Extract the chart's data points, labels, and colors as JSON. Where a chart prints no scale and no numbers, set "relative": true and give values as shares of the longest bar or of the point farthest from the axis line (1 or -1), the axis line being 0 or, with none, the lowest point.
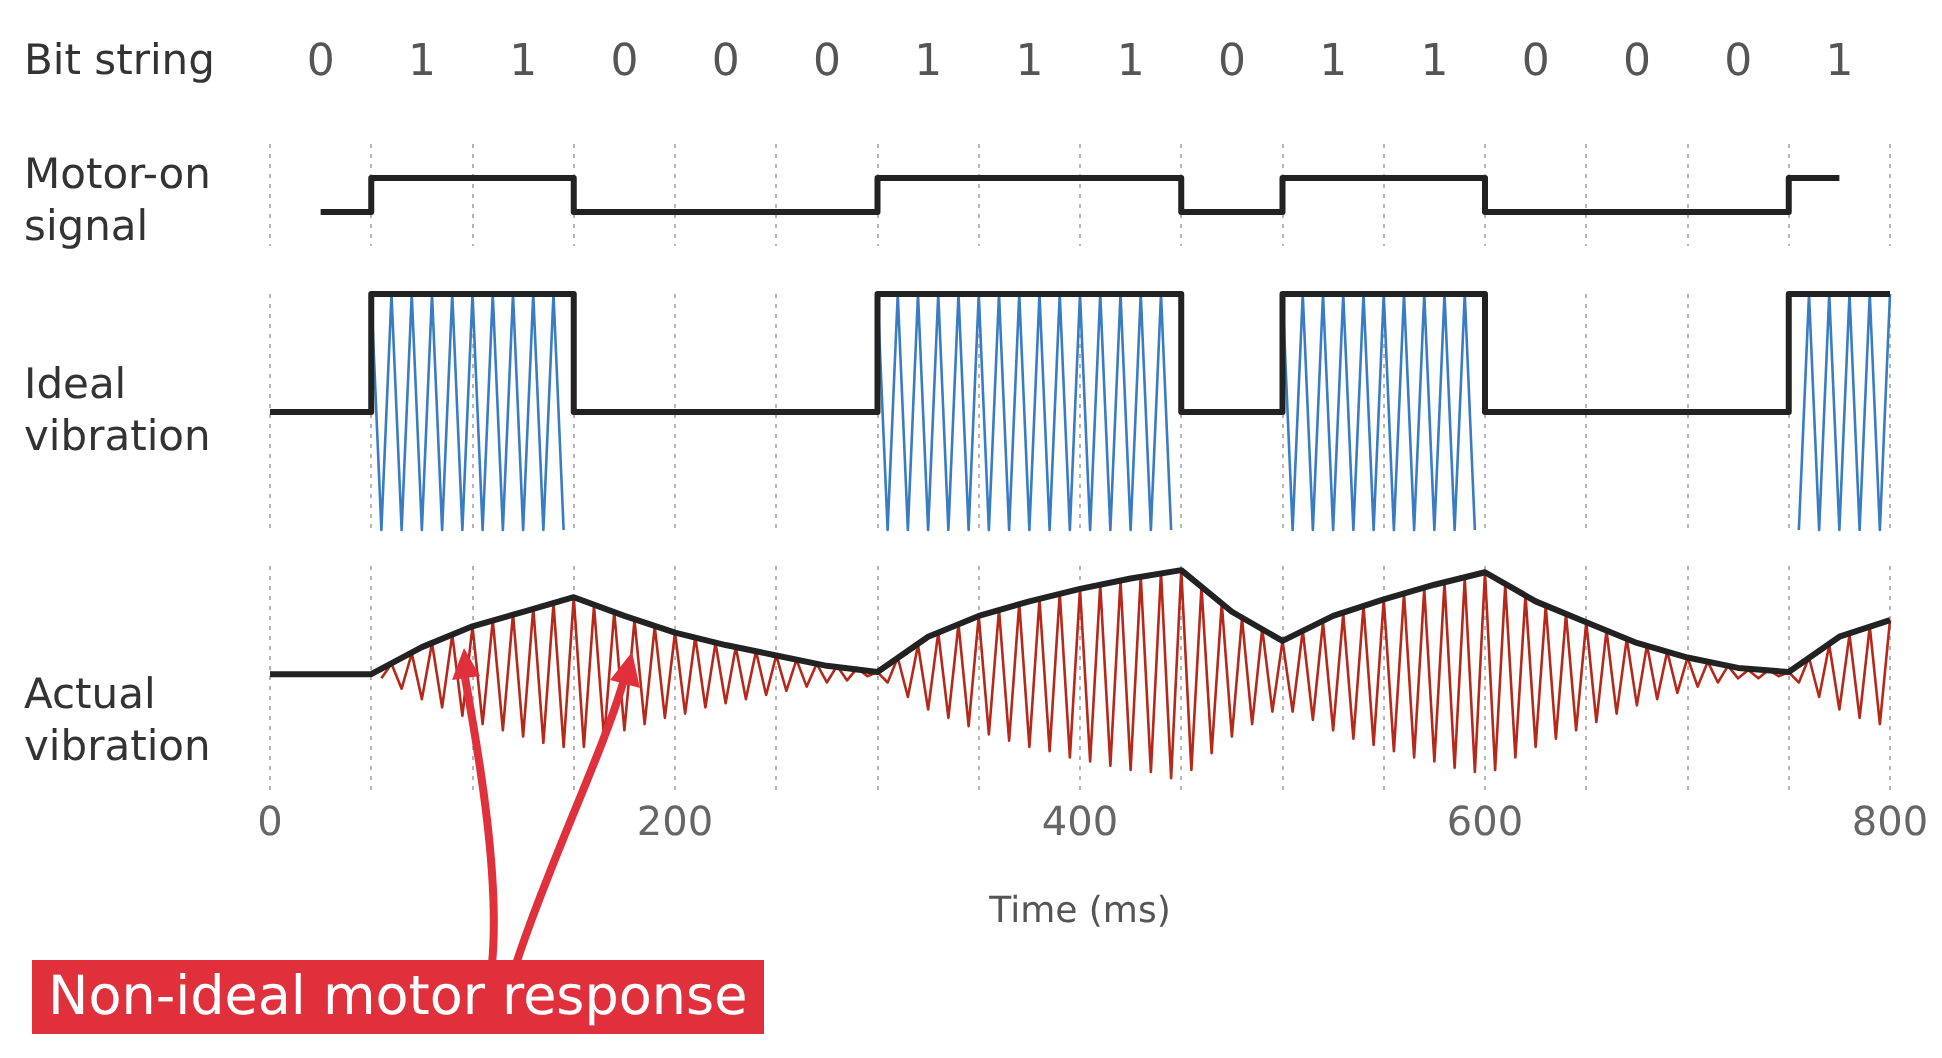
{
  "chart_data": [
    {
      "type": "step",
      "title": "Bit string",
      "ylabel": "Motor-on signal",
      "xlim": [
        0,
        800
      ],
      "xticks": [
        0,
        {
          "value": 50,
          "label": null
        },
        {
          "value": 100,
          "label": null
        },
        {
          "value": 150,
          "label": null
        },
        200,
        {
          "value": 250,
          "label": null
        },
        {
          "value": 300,
          "label": null
        },
        {
          "value": 350,
          "label": null
        },
        400,
        {
          "value": 450,
          "label": null
        },
        {
          "value": 500,
          "label": null
        },
        {
          "value": 550,
          "label": null
        },
        600,
        {
          "value": 650,
          "label": null
        },
        {
          "value": 700,
          "label": null
        },
        {
          "value": 750,
          "label": null
        },
        800
      ],
      "grid": "x",
      "tick_labels": false,
      "series": [
        {
          "color": "#222222",
          "x": [
            25,
            75,
            125,
            175,
            225,
            275,
            325,
            375,
            425,
            475,
            525,
            575,
            625,
            675,
            725,
            775
          ],
          "values": [
            0,
            1,
            1,
            0,
            0,
            0,
            1,
            1,
            1,
            0,
            1,
            1,
            0,
            0,
            0,
            1
          ],
          "value_labels": [
            "0",
            "1",
            "1",
            "0",
            "0",
            "0",
            "1",
            "1",
            "1",
            "0",
            "1",
            "1",
            "0",
            "0",
            "0",
            "1"
          ]
        }
      ]
    },
    {
      "type": "line",
      "ylabel": "Ideal vibration",
      "relative": true,
      "xlim": [
        0,
        800
      ],
      "xticks": [
        0,
        {
          "value": 50,
          "label": null
        },
        {
          "value": 100,
          "label": null
        },
        {
          "value": 150,
          "label": null
        },
        200,
        {
          "value": 250,
          "label": null
        },
        {
          "value": 300,
          "label": null
        },
        {
          "value": 350,
          "label": null
        },
        400,
        {
          "value": 450,
          "label": null
        },
        {
          "value": 500,
          "label": null
        },
        {
          "value": 550,
          "label": null
        },
        600,
        {
          "value": 650,
          "label": null
        },
        {
          "value": 700,
          "label": null
        },
        {
          "value": 750,
          "label": null
        },
        800
      ],
      "grid": "x",
      "tick_labels": false,
      "series": [
        {
          "color": "#3a7cc4",
          "x": [
            50,
            55,
            60,
            65,
            70,
            75,
            80,
            85,
            90,
            95,
            100,
            105,
            110,
            115,
            120,
            125,
            130,
            135,
            140,
            145
          ],
          "values": [
            1,
            0,
            1,
            0,
            1,
            0,
            1,
            0,
            1,
            0,
            1,
            0,
            1,
            0,
            1,
            0,
            1,
            0,
            1,
            0
          ]
        },
        {
          "color": "#3a7cc4",
          "x": [
            300,
            305,
            310,
            315,
            320,
            325,
            330,
            335,
            340,
            345,
            350,
            355,
            360,
            365,
            370,
            375,
            380,
            385,
            390,
            395,
            400,
            405,
            410,
            415,
            420,
            425,
            430,
            435,
            440,
            445
          ],
          "values": [
            1,
            0,
            1,
            0,
            1,
            0,
            1,
            0,
            1,
            0,
            1,
            0,
            1,
            0,
            1,
            0,
            1,
            0,
            1,
            0,
            1,
            0,
            1,
            0,
            1,
            0,
            1,
            0,
            1,
            0
          ]
        },
        {
          "color": "#3a7cc4",
          "x": [
            500,
            505,
            510,
            515,
            520,
            525,
            530,
            535,
            540,
            545,
            550,
            555,
            560,
            565,
            570,
            575,
            580,
            585,
            590,
            595
          ],
          "values": [
            1,
            0,
            1,
            0,
            1,
            0,
            1,
            0,
            1,
            0,
            1,
            0,
            1,
            0,
            1,
            0,
            1,
            0,
            1,
            0
          ]
        },
        {
          "color": "#3a7cc4",
          "x": [
            755,
            760,
            765,
            770,
            775,
            780,
            785,
            790,
            795,
            800
          ],
          "values": [
            0,
            1,
            0,
            1,
            0,
            1,
            0,
            1,
            0,
            1
          ]
        },
        {
          "type": "step",
          "color": "#222222",
          "x": [
            0,
            50,
            100,
            150,
            200,
            250,
            300,
            350,
            400,
            450,
            500,
            550,
            600,
            650,
            700,
            750,
            800
          ],
          "values": [
            0.5,
            1,
            1,
            0.5,
            0.5,
            0.5,
            1,
            1,
            1,
            0.5,
            1,
            1,
            0.5,
            0.5,
            0.5,
            1,
            1
          ]
        }
      ]
    },
    {
      "type": "line",
      "ylabel": "Actual vibration",
      "xlabel": "Time (ms)",
      "relative": true,
      "xlim": [
        0,
        800
      ],
      "xticks": [
        0,
        {
          "value": 50,
          "label": null
        },
        {
          "value": 100,
          "label": null
        },
        {
          "value": 150,
          "label": null
        },
        200,
        {
          "value": 250,
          "label": null
        },
        {
          "value": 300,
          "label": null
        },
        {
          "value": 350,
          "label": null
        },
        400,
        {
          "value": 450,
          "label": null
        },
        {
          "value": 500,
          "label": null
        },
        {
          "value": 550,
          "label": null
        },
        600,
        {
          "value": 650,
          "label": null
        },
        {
          "value": 700,
          "label": null
        },
        {
          "value": 750,
          "label": null
        },
        800
      ],
      "grid": "x",
      "tick_labels": "x",
      "annotations": [
        "Non-ideal motor response"
      ],
      "series": [
        {
          "color": "#b5281a",
          "x": [
            55,
            60,
            65,
            70,
            75,
            80,
            85,
            90,
            95,
            100,
            105,
            110,
            115,
            120,
            125,
            130,
            135,
            140,
            145,
            150,
            155,
            160,
            165,
            170,
            175,
            180,
            185,
            190,
            195,
            200,
            205,
            210,
            215,
            220,
            225,
            230,
            235,
            240,
            245,
            250,
            255,
            260,
            265,
            270,
            275,
            280,
            285,
            290,
            295,
            300,
            305,
            310,
            315,
            320,
            325,
            330,
            335,
            340,
            345,
            350,
            355,
            360,
            365,
            370,
            375,
            380,
            385,
            390,
            395,
            400,
            405,
            410,
            415,
            420,
            425,
            430,
            435,
            440,
            445,
            450,
            455,
            460,
            465,
            470,
            475,
            480,
            485,
            490,
            495,
            500,
            505,
            510,
            515,
            520,
            525,
            530,
            535,
            540,
            545,
            550,
            555,
            560,
            565,
            570,
            575,
            580,
            585,
            590,
            595,
            600,
            605,
            610,
            615,
            620,
            625,
            630,
            635,
            640,
            645,
            650,
            655,
            660,
            665,
            670,
            675,
            680,
            685,
            690,
            695,
            700,
            705,
            710,
            715,
            720,
            725,
            730,
            735,
            740,
            745,
            750,
            755,
            760,
            765,
            770,
            775,
            780,
            785,
            790,
            795,
            800
          ],
          "values": [
            0.48,
            0.55,
            0.43,
            0.6,
            0.38,
            0.65,
            0.34,
            0.69,
            0.3,
            0.73,
            0.26,
            0.76,
            0.23,
            0.79,
            0.2,
            0.82,
            0.17,
            0.84,
            0.15,
            0.87,
            0.15,
            0.83,
            0.19,
            0.8,
            0.23,
            0.76,
            0.26,
            0.73,
            0.29,
            0.7,
            0.31,
            0.68,
            0.34,
            0.65,
            0.36,
            0.63,
            0.38,
            0.61,
            0.4,
            0.59,
            0.42,
            0.57,
            0.44,
            0.55,
            0.46,
            0.54,
            0.47,
            0.53,
            0.49,
            0.51,
            0.46,
            0.58,
            0.39,
            0.64,
            0.33,
            0.7,
            0.29,
            0.74,
            0.25,
            0.78,
            0.21,
            0.81,
            0.18,
            0.84,
            0.15,
            0.86,
            0.13,
            0.89,
            0.1,
            0.91,
            0.08,
            0.93,
            0.06,
            0.95,
            0.04,
            0.97,
            0.03,
            0.99,
            0,
            1,
            0.04,
            0.92,
            0.12,
            0.84,
            0.2,
            0.77,
            0.26,
            0.72,
            0.32,
            0.66,
            0.32,
            0.71,
            0.28,
            0.75,
            0.23,
            0.79,
            0.19,
            0.83,
            0.16,
            0.86,
            0.13,
            0.89,
            0.1,
            0.91,
            0.08,
            0.94,
            0.05,
            0.96,
            0.03,
            0.99,
            0.04,
            0.93,
            0.1,
            0.88,
            0.15,
            0.83,
            0.19,
            0.79,
            0.23,
            0.75,
            0.27,
            0.71,
            0.31,
            0.67,
            0.35,
            0.64,
            0.38,
            0.61,
            0.41,
            0.58,
            0.44,
            0.56,
            0.46,
            0.54,
            0.48,
            0.52,
            0.48,
            0.52,
            0.49,
            0.51,
            0.46,
            0.58,
            0.39,
            0.64,
            0.33,
            0.69,
            0.29,
            0.73,
            0.26,
            0.76
          ]
        },
        {
          "color": "#222222",
          "x": [
            0,
            50,
            75,
            100,
            125,
            150,
            175,
            200,
            225,
            250,
            275,
            300,
            325,
            350,
            375,
            400,
            425,
            450,
            475,
            500,
            525,
            550,
            575,
            600,
            625,
            650,
            675,
            700,
            725,
            750,
            775,
            800
          ],
          "values": [
            0.5,
            0.5,
            0.63,
            0.73,
            0.8,
            0.87,
            0.78,
            0.7,
            0.64,
            0.59,
            0.54,
            0.51,
            0.68,
            0.78,
            0.85,
            0.91,
            0.96,
            1,
            0.8,
            0.66,
            0.78,
            0.86,
            0.93,
            0.99,
            0.85,
            0.75,
            0.65,
            0.58,
            0.53,
            0.51,
            0.68,
            0.76
          ]
        }
      ]
    }
  ]
}
